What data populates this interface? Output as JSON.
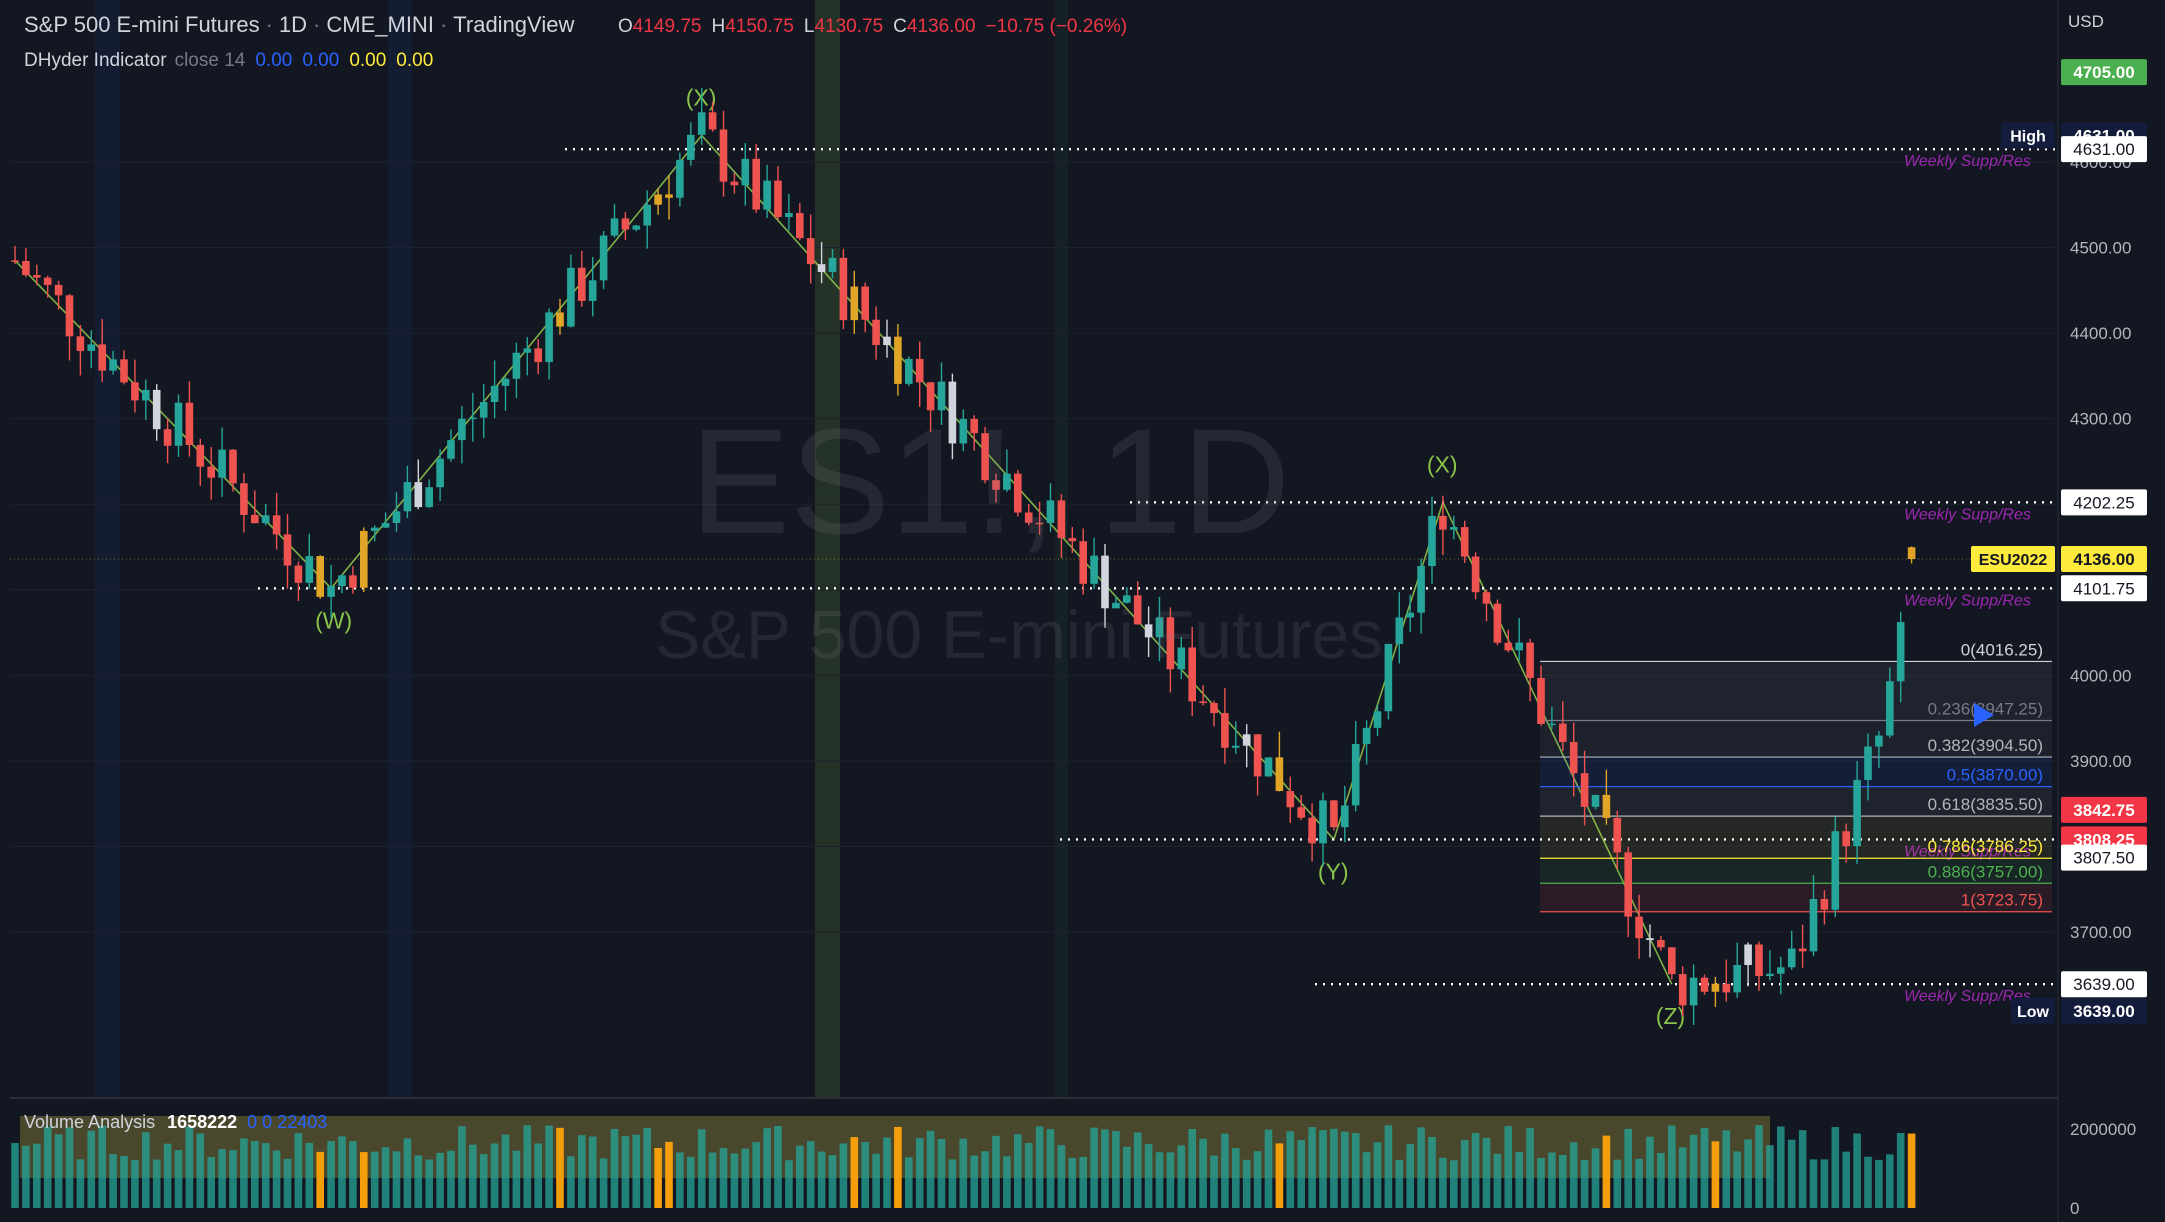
{
  "header": {
    "symbol": "S&P 500 E-mini Futures",
    "interval": "1D",
    "exchange": "CME_MINI",
    "platform": "TradingView",
    "ohlc": {
      "o_label": "O",
      "o": "4149.75",
      "h_label": "H",
      "h": "4150.75",
      "l_label": "L",
      "l": "4130.75",
      "c_label": "C",
      "c": "4136.00",
      "change": "−10.75 (−0.26%)"
    }
  },
  "indicator": {
    "name": "DHyder Indicator",
    "args": "close 14",
    "v1": "0.00",
    "v2": "0.00",
    "v3": "0.00",
    "v4": "0.00"
  },
  "volume_indicator": {
    "name": "Volume Analysis",
    "value": "1658222",
    "extra": "0  0  22403"
  },
  "watermark": {
    "big": "ES1!, 1D",
    "small": "S&P 500 E-mini Futures"
  },
  "axis": {
    "currency": "USD"
  },
  "colors": {
    "background": "#131722",
    "up": "#26a69a",
    "down": "#ef5350",
    "neutral": "#d1d4dc",
    "gold": "#e0a526",
    "wave": "#8bc34a",
    "weekly": "#9c27b0",
    "axis_green": "#4caf50",
    "axis_pink": "#f23645",
    "axis_navy": "#1e3a8a",
    "axis_yellow": "#ffeb3b"
  },
  "chart_data": {
    "type": "candlestick",
    "interval": "1D",
    "ylim": [
      3550,
      4760
    ],
    "y_ticks": [
      3700,
      3800,
      3900,
      4000,
      4100,
      4200,
      4300,
      4400,
      4500,
      4600
    ],
    "y_tick_labels": [
      "3700.00",
      "3800.00",
      "3900.00",
      "4000.00",
      "4100.00",
      "4200.00",
      "4300.00",
      "4400.00",
      "4500.00",
      "4600.00"
    ],
    "price_labels": [
      {
        "text": "4705.00",
        "price": 4705,
        "style": "green"
      },
      {
        "text": "4631.00",
        "price": 4631,
        "style": "dark",
        "tag": "High"
      },
      {
        "text": "4631.00",
        "price": 4615,
        "style": "outline"
      },
      {
        "text": "4202.25",
        "price": 4202.25,
        "style": "outline"
      },
      {
        "text": "4136.00",
        "price": 4136,
        "style": "yellow",
        "tag": "ESU2022"
      },
      {
        "text": "4101.75",
        "price": 4101.75,
        "style": "outline"
      },
      {
        "text": "3842.75",
        "price": 3842.75,
        "style": "pink"
      },
      {
        "text": "3808.25",
        "price": 3808.25,
        "style": "pink"
      },
      {
        "text": "3807.50",
        "price": 3787,
        "style": "outline"
      },
      {
        "text": "3639.00",
        "price": 3639,
        "style": "outline"
      },
      {
        "text": "3639.00",
        "price": 3608,
        "style": "dark",
        "tag": "Low"
      }
    ],
    "support_resistance": [
      {
        "price": 4615,
        "label": "Weekly Supp/Res",
        "x_from": 565
      },
      {
        "price": 4202.25,
        "label": "Weekly Supp/Res",
        "x_from": 1130
      },
      {
        "price": 4101.75,
        "label": "Weekly Supp/Res",
        "x_from": 258
      },
      {
        "price": 3808.25,
        "label": "Weekly Supp/Res",
        "x_from": 1060
      },
      {
        "price": 3639,
        "label": "Weekly Supp/Res",
        "x_from": 1315
      }
    ],
    "wave_points": [
      {
        "label": "",
        "i": 0,
        "price": 4485
      },
      {
        "label": "(W)",
        "i": 29,
        "price": 4101.75
      },
      {
        "label": "(X)",
        "i": 63,
        "price": 4631
      },
      {
        "label": "(Y)",
        "i": 121,
        "price": 3808.25
      },
      {
        "label": "(X)",
        "i": 131,
        "price": 4202.25
      },
      {
        "label": "(Z)",
        "i": 152,
        "price": 3639
      }
    ],
    "fibonacci": [
      {
        "label": "0(4016.25)",
        "price": 4016.25,
        "color": "#d1d4dc"
      },
      {
        "label": "0.236(3947.25)",
        "price": 3947.25,
        "color": "#787b86"
      },
      {
        "label": "0.382(3904.50)",
        "price": 3904.5,
        "color": "#b2b5be"
      },
      {
        "label": "0.5(3870.00)",
        "price": 3870,
        "color": "#2962ff"
      },
      {
        "label": "0.618(3835.50)",
        "price": 3835.5,
        "color": "#b2b5be"
      },
      {
        "label": "0.786(3786.25)",
        "price": 3786.25,
        "color": "#ffeb3b"
      },
      {
        "label": "0.886(3757.00)",
        "price": 3757,
        "color": "#4caf50"
      },
      {
        "label": "1(3723.75)",
        "price": 3723.75,
        "color": "#ef5350"
      }
    ],
    "volume": {
      "ylim": [
        0,
        2600000
      ],
      "y_ticks": [
        0,
        2000000
      ],
      "y_tick_labels": [
        "0",
        "2000000"
      ]
    },
    "candles": []
  }
}
